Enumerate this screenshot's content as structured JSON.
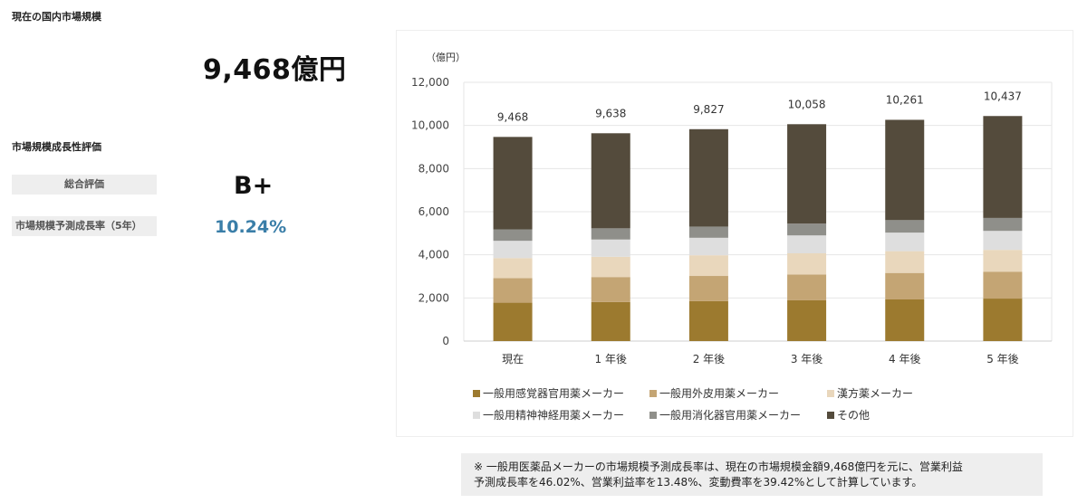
{
  "market_size": {
    "section_title": "現在の国内市場規模",
    "value": "9,468億円"
  },
  "growth": {
    "section_title": "市場規模成長性評価",
    "overall_label": "総合評価",
    "overall_grade": "B+",
    "rate_label": "市場規模予測成長率（5年）",
    "rate_value": "10.24%"
  },
  "note": {
    "line1": "※ 一般用医薬品メーカーの市場規模予測成長率は、現在の市場規模金額9,468億円を元に、営業利益",
    "line2": "予測成長率を46.02%、営業利益率を13.48%、変動費率を39.42%として計算しています。"
  },
  "chart_data": {
    "type": "bar",
    "stacked": true,
    "ylabel": "（億円）",
    "ylim": [
      0,
      12000
    ],
    "yticks": [
      0,
      2000,
      4000,
      6000,
      8000,
      10000,
      12000
    ],
    "ytick_labels": [
      "0",
      "2,000",
      "4,000",
      "6,000",
      "8,000",
      "10,000",
      "12,000"
    ],
    "grid": true,
    "legend_position": "bottom",
    "categories": [
      "現在",
      "1 年後",
      "2 年後",
      "3 年後",
      "4 年後",
      "5 年後"
    ],
    "totals": [
      9468,
      9638,
      9827,
      10058,
      10261,
      10437
    ],
    "total_labels": [
      "9,468",
      "9,638",
      "9,827",
      "10,058",
      "10,261",
      "10,437"
    ],
    "series": [
      {
        "name": "一般用感覚器官用薬メーカー",
        "color": "#9c7a2f",
        "values": [
          1780,
          1810,
          1850,
          1890,
          1930,
          1970
        ]
      },
      {
        "name": "一般用外皮用薬メーカー",
        "color": "#c4a574",
        "values": [
          1140,
          1160,
          1170,
          1200,
          1230,
          1240
        ]
      },
      {
        "name": "漢方薬メーカー",
        "color": "#e9d7bc",
        "values": [
          930,
          940,
          960,
          980,
          1010,
          1020
        ]
      },
      {
        "name": "一般用精神神経用薬メーカー",
        "color": "#dedede",
        "values": [
          800,
          800,
          810,
          830,
          860,
          880
        ]
      },
      {
        "name": "一般用消化器官用薬メーカー",
        "color": "#8f8f8a",
        "values": [
          530,
          520,
          520,
          550,
          580,
          600
        ]
      },
      {
        "name": "その他",
        "color": "#544b3c",
        "values": [
          4288,
          4408,
          4517,
          4608,
          4651,
          4727
        ]
      }
    ]
  }
}
